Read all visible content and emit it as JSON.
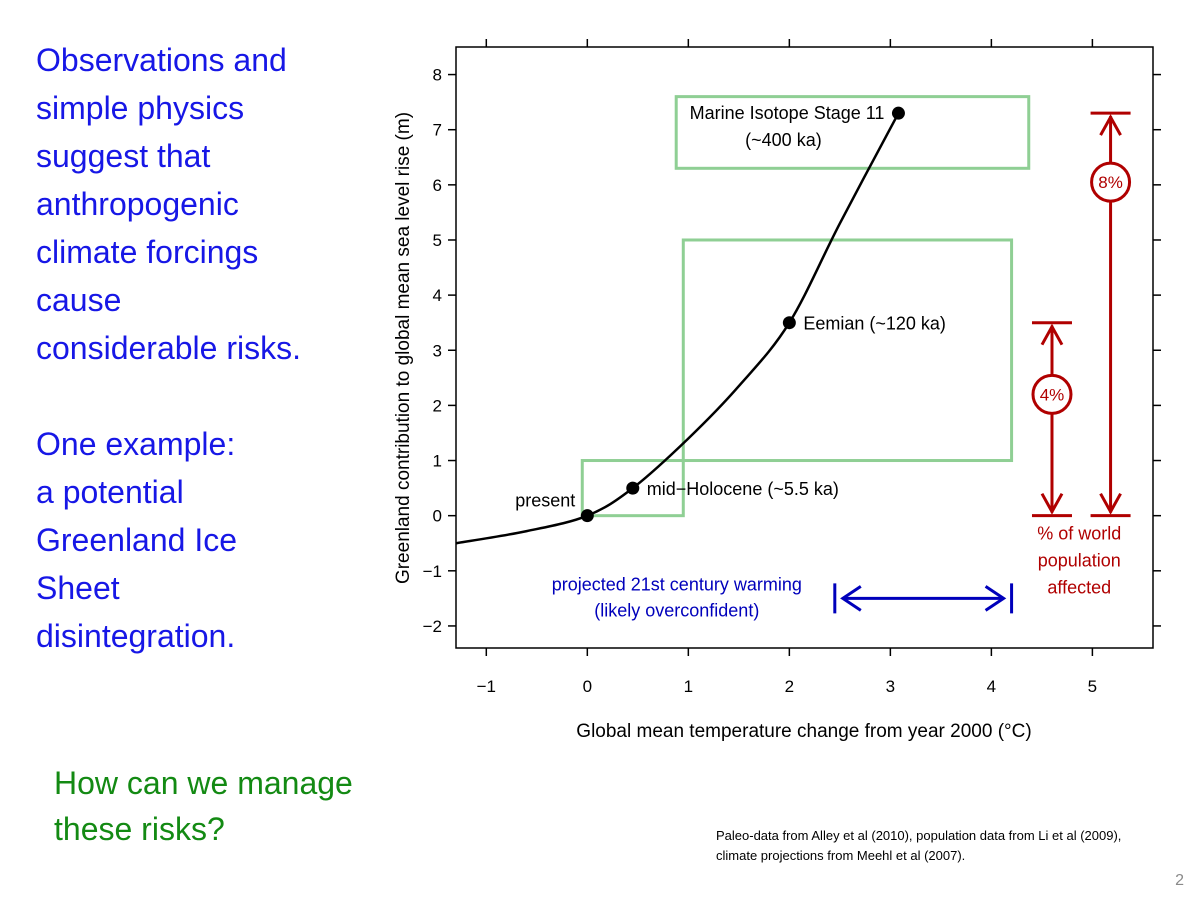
{
  "slide": {
    "text_lines": [
      "Observations and",
      "simple physics",
      "suggest that",
      "anthropogenic",
      "climate forcings",
      "cause",
      "considerable risks."
    ],
    "example_lines": [
      "One example:",
      "a potential",
      "Greenland Ice",
      "Sheet",
      "disintegration."
    ],
    "question_lines": [
      "How can we manage",
      "these risks?"
    ],
    "citation": "Paleo-data from Alley et al (2010), population data from Li et al (2009), climate projections from Meehl et al (2007).",
    "slide_number": "2"
  },
  "colors": {
    "body_text": "#1717e6",
    "question_text": "#138a13",
    "box": "#8fcf94",
    "curve": "#000000",
    "population": "#b00000",
    "projection": "#0000bb"
  },
  "chart_data": {
    "type": "line",
    "xlabel": "Global mean temperature change from year 2000 (°C)",
    "ylabel": "Greenland contribution to global mean sea level rise (m)",
    "xlim": [
      -1.3,
      5.6
    ],
    "ylim": [
      -2.4,
      8.5
    ],
    "x_ticks": [
      -1,
      0,
      1,
      2,
      3,
      4,
      5
    ],
    "y_ticks": [
      -2,
      -1,
      0,
      1,
      2,
      3,
      4,
      5,
      6,
      7,
      8
    ],
    "x_tick_labels": [
      "−1",
      "0",
      "1",
      "2",
      "3",
      "4",
      "5"
    ],
    "y_tick_labels": [
      "−2",
      "−1",
      "0",
      "1",
      "2",
      "3",
      "4",
      "5",
      "6",
      "7",
      "8"
    ],
    "curve": [
      {
        "x": -1.3,
        "y": -0.5
      },
      {
        "x": -0.6,
        "y": -0.28
      },
      {
        "x": 0,
        "y": 0
      },
      {
        "x": 0.45,
        "y": 0.5
      },
      {
        "x": 1.0,
        "y": 1.4
      },
      {
        "x": 1.5,
        "y": 2.35
      },
      {
        "x": 2.0,
        "y": 3.5
      },
      {
        "x": 2.5,
        "y": 5.3
      },
      {
        "x": 3.08,
        "y": 7.3
      }
    ],
    "points": [
      {
        "name": "present",
        "label": "present",
        "x": 0,
        "y": 0
      },
      {
        "name": "mid-holocene",
        "label": "mid−Holocene (~5.5 ka)",
        "x": 0.45,
        "y": 0.5
      },
      {
        "name": "eemian",
        "label": "Eemian (~120 ka)",
        "x": 2.0,
        "y": 3.5
      },
      {
        "name": "marine-isotope-stage-11",
        "label": "Marine Isotope Stage 11",
        "label_line2": "(~400 ka)",
        "x": 3.08,
        "y": 7.3
      }
    ],
    "uncertainty_boxes": [
      {
        "name": "box-present-holocene",
        "x": [
          -0.05,
          0.95
        ],
        "y": [
          0,
          1
        ]
      },
      {
        "name": "box-eemian",
        "x": [
          0.95,
          4.2
        ],
        "y": [
          1,
          5
        ]
      },
      {
        "name": "box-mis11",
        "x": [
          0.88,
          4.37
        ],
        "y": [
          6.3,
          7.6
        ]
      }
    ],
    "projection": {
      "label_line1": "projected 21st century warming",
      "label_line2": "(likely overconfident)",
      "x": [
        2.45,
        4.2
      ],
      "y": -1.5
    },
    "population": {
      "label_lines": [
        "% of world",
        "population",
        "affected"
      ],
      "arrows": [
        {
          "name": "population-4pct",
          "label": "4%",
          "x": 4.6,
          "y": [
            0,
            3.5
          ],
          "label_y": 2.2
        },
        {
          "name": "population-8pct",
          "label": "8%",
          "x": 5.18,
          "y": [
            0,
            7.3
          ],
          "label_y": 6.05
        }
      ]
    }
  }
}
